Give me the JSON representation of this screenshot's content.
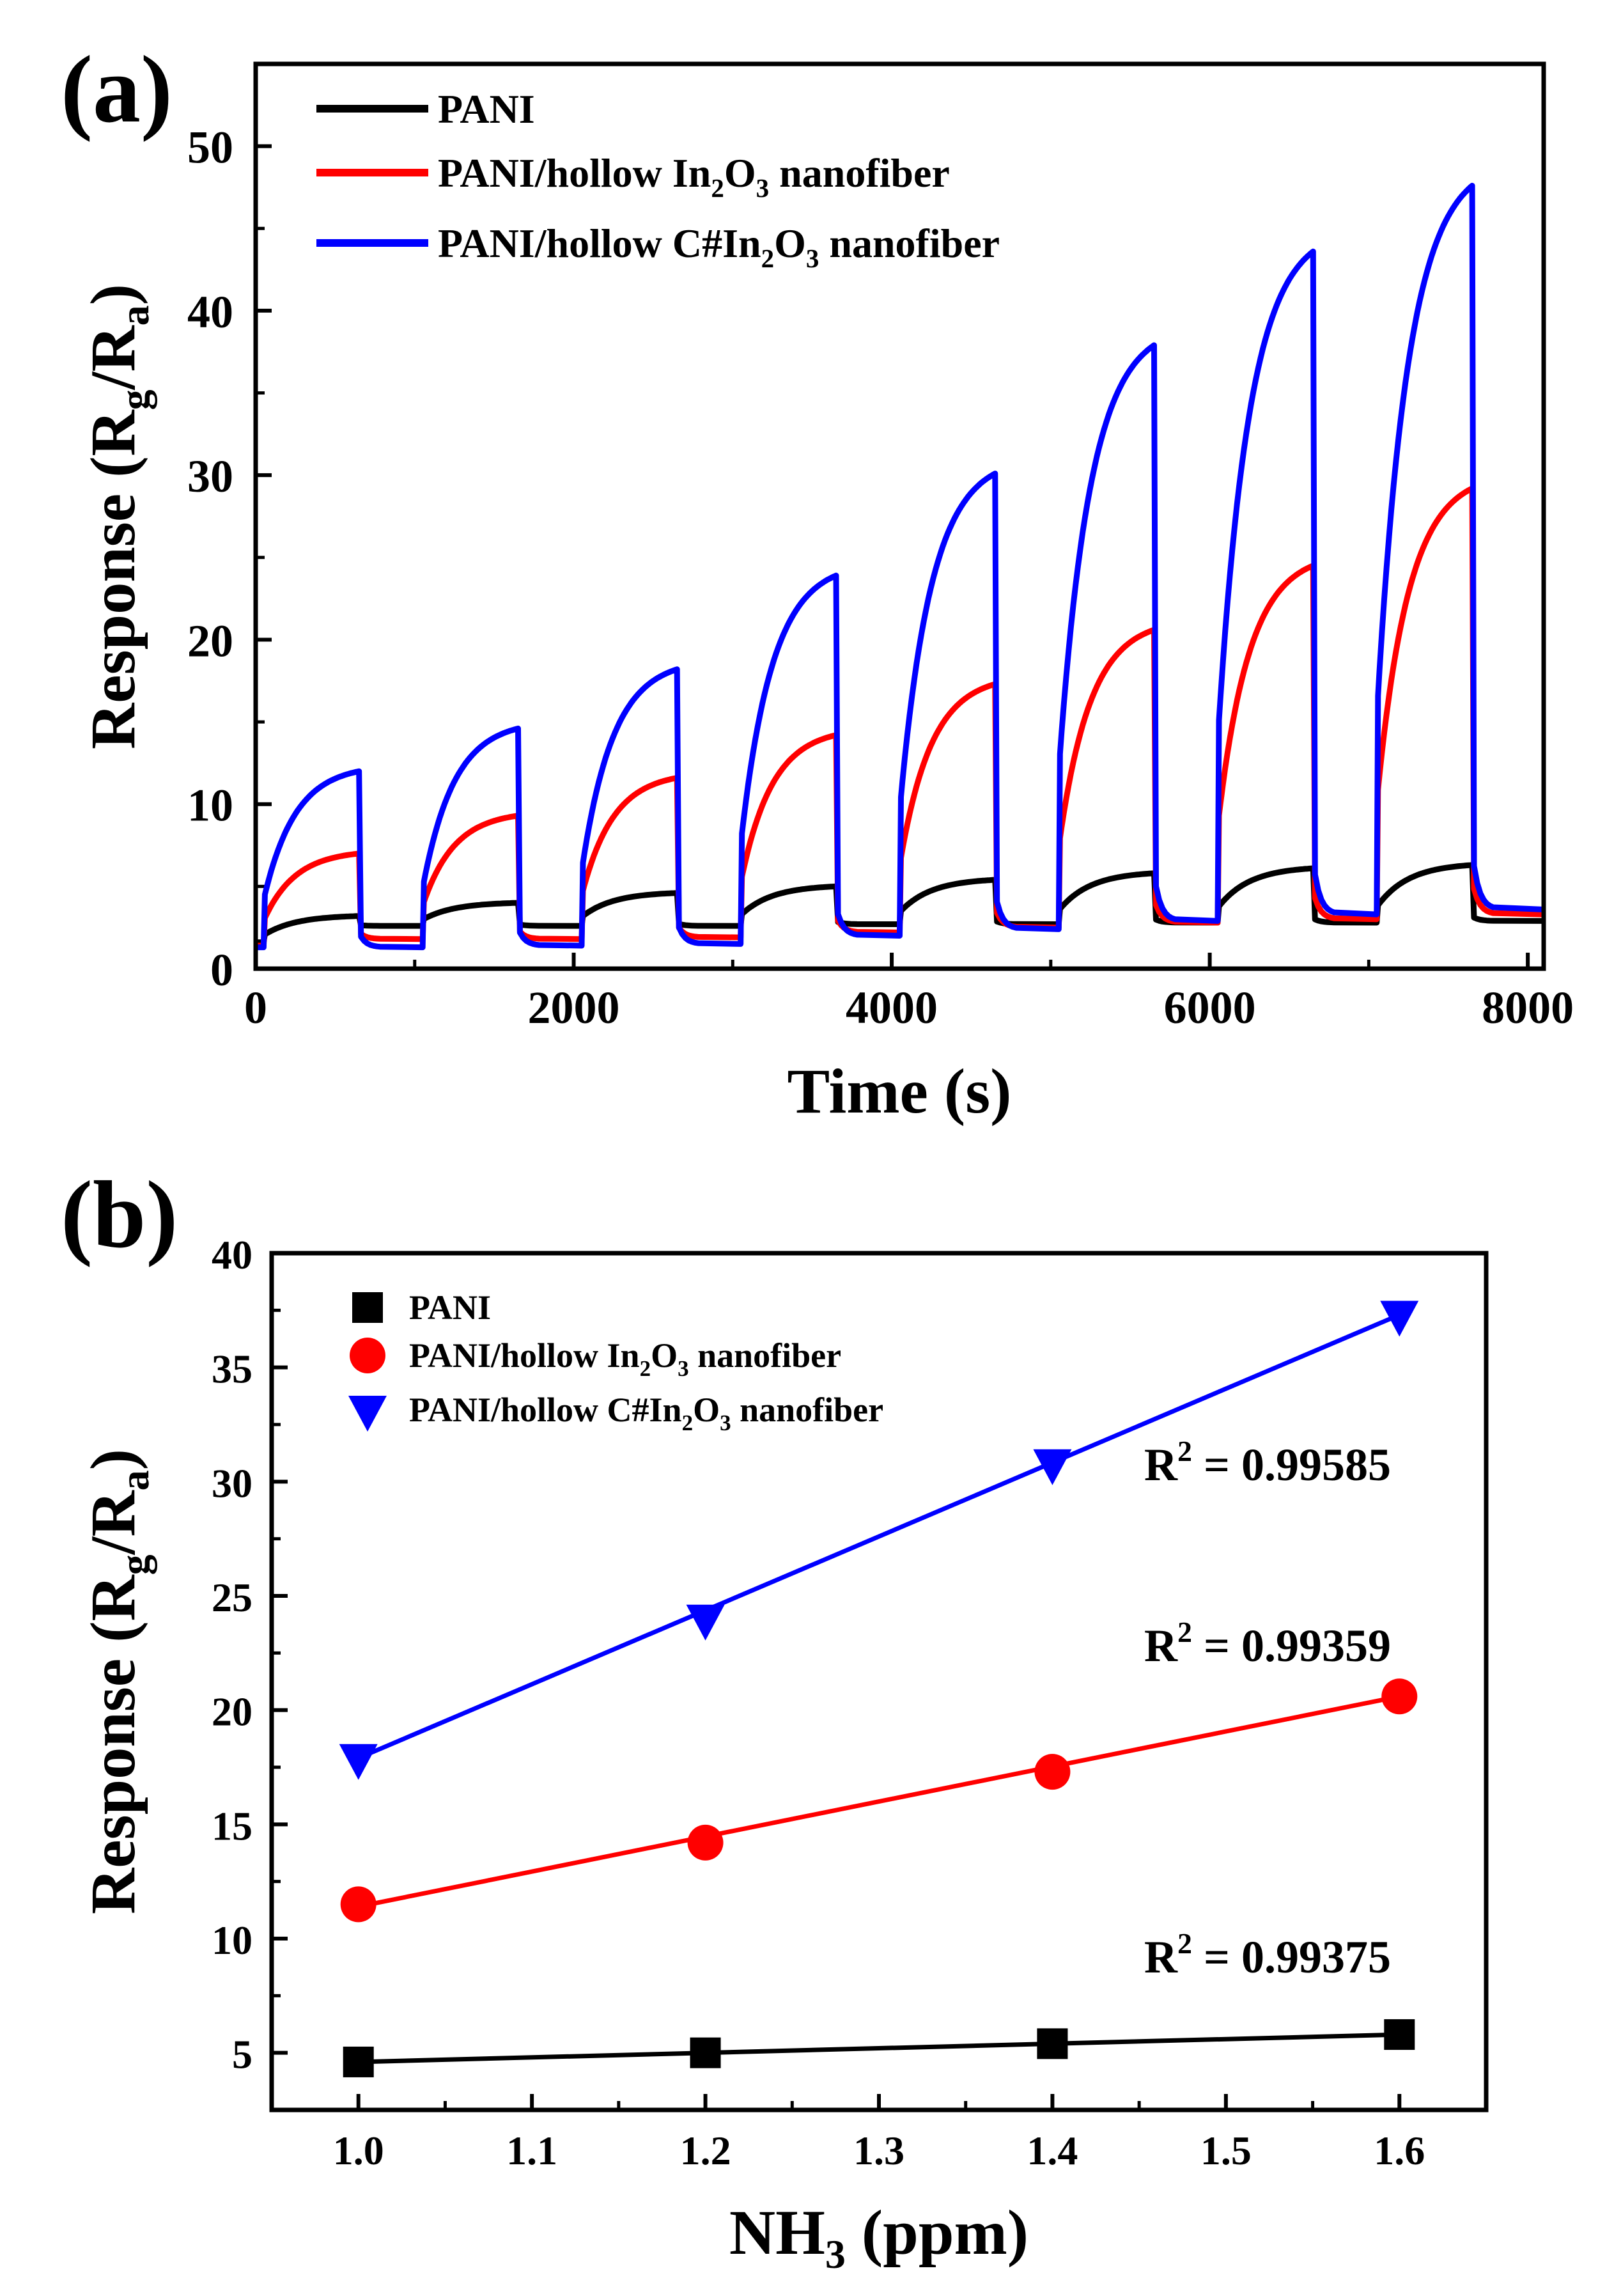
{
  "panel_a": {
    "label": "(a)",
    "chart_data": {
      "type": "line",
      "xlabel": "Time (s)",
      "ylabel": {
        "main": "Response (R",
        "sub_g": "g",
        "slash": "/R",
        "sub_a": "a",
        "close": ")"
      },
      "xlim": [
        0,
        8100
      ],
      "ylim": [
        0,
        55
      ],
      "xticks": [
        0,
        2000,
        4000,
        6000,
        8000
      ],
      "yticks": [
        0,
        10,
        20,
        30,
        40,
        50
      ],
      "cycle": {
        "period_s": 1000,
        "first_on_s": 50,
        "exposure_s": 600
      },
      "series": [
        {
          "name": "PANI",
          "legend": {
            "pre": "PANI",
            "sub1": "",
            "mid": "",
            "sub2": "",
            "post": ""
          },
          "color": "#000000",
          "baselines": [
            1.6,
            2.6,
            2.6,
            2.6,
            2.7,
            2.7,
            2.8,
            2.8,
            2.9
          ],
          "peaks": [
            3.2,
            4.0,
            4.6,
            5.0,
            5.4,
            5.8,
            6.1,
            6.3
          ]
        },
        {
          "name": "PANI/hollow In2O3 nanofiber",
          "legend": {
            "pre": "PANI/hollow In",
            "sub1": "2",
            "mid": "O",
            "sub2": "3",
            "post": " nanofiber"
          },
          "color": "#ff0000",
          "baselines": [
            1.4,
            1.8,
            1.8,
            1.9,
            2.2,
            2.5,
            2.8,
            3.0,
            3.3
          ],
          "peaks": [
            7.0,
            9.3,
            11.6,
            14.2,
            17.3,
            20.6,
            24.5,
            29.2
          ]
        },
        {
          "name": "PANI/hollow C#In2O3 nanofiber",
          "legend": {
            "pre": "PANI/hollow C#In",
            "sub1": "2",
            "mid": "O",
            "sub2": "3",
            "post": " nanofiber"
          },
          "color": "#0000ff",
          "baselines": [
            1.3,
            1.3,
            1.4,
            1.5,
            2.0,
            2.4,
            2.9,
            3.3,
            3.6
          ],
          "peaks": [
            12.0,
            14.6,
            18.2,
            23.9,
            30.1,
            37.9,
            43.6,
            47.6
          ]
        }
      ]
    }
  },
  "panel_b": {
    "label": "(b)",
    "chart_data": {
      "type": "scatter",
      "xlabel": {
        "main": "NH",
        "sub": "3",
        "rest": " (ppm)"
      },
      "ylabel": {
        "main": "Response (R",
        "sub_g": "g",
        "slash": "/R",
        "sub_a": "a",
        "close": ")"
      },
      "xlim": [
        0.95,
        1.65
      ],
      "ylim": [
        2.5,
        40
      ],
      "xticks": [
        "1.0",
        "1.1",
        "1.2",
        "1.3",
        "1.4",
        "1.5",
        "1.6"
      ],
      "yticks": [
        5,
        10,
        15,
        20,
        25,
        30,
        35,
        40
      ],
      "x": [
        1.0,
        1.2,
        1.4,
        1.6
      ],
      "series": [
        {
          "name": "PANI",
          "legend": {
            "pre": "PANI",
            "sub1": "",
            "mid": "",
            "sub2": "",
            "post": ""
          },
          "color": "#000000",
          "marker": "square",
          "values": [
            4.6,
            5.0,
            5.4,
            5.8
          ],
          "fit": [
            4.6,
            5.8
          ],
          "r2": {
            "lead": "R",
            "sup": "2",
            "rest": " = 0.99375"
          }
        },
        {
          "name": "PANI/hollow In2O3 nanofiber",
          "legend": {
            "pre": "PANI/hollow In",
            "sub1": "2",
            "mid": "O",
            "sub2": "3",
            "post": " nanofiber"
          },
          "color": "#ff0000",
          "marker": "circle",
          "values": [
            11.5,
            14.2,
            17.3,
            20.6
          ],
          "fit": [
            11.4,
            20.6
          ],
          "r2": {
            "lead": "R",
            "sup": "2",
            "rest": " = 0.99359"
          }
        },
        {
          "name": "PANI/hollow C#In2O3 nanofiber",
          "legend": {
            "pre": "PANI/hollow C#In",
            "sub1": "2",
            "mid": "O",
            "sub2": "3",
            "post": " nanofiber"
          },
          "color": "#0000ff",
          "marker": "triangle-down",
          "values": [
            17.9,
            24.0,
            30.8,
            37.3
          ],
          "fit": [
            17.9,
            37.3
          ],
          "r2": {
            "lead": "R",
            "sup": "2",
            "rest": " = 0.99585"
          }
        }
      ]
    }
  }
}
